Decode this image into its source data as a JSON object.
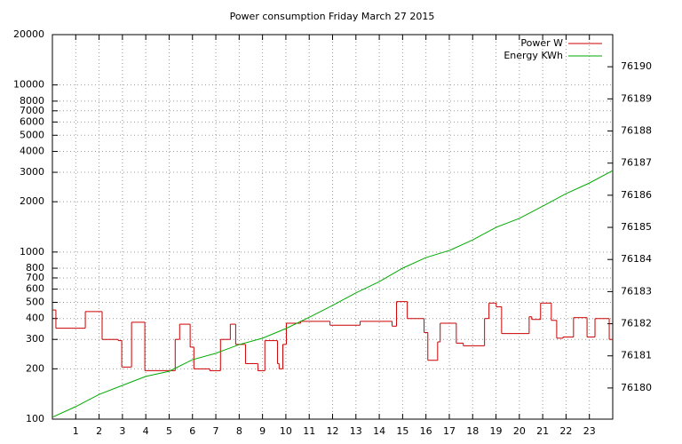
{
  "chart_data": {
    "type": "line",
    "title": "Power consumption Friday March 27 2015",
    "xlim": [
      0,
      24
    ],
    "xticks": [
      1,
      2,
      3,
      4,
      5,
      6,
      7,
      8,
      9,
      10,
      11,
      12,
      13,
      14,
      15,
      16,
      17,
      18,
      19,
      20,
      21,
      22,
      23
    ],
    "ylim": [
      100,
      20000
    ],
    "log_scale": "y",
    "yticks": [
      100,
      200,
      300,
      400,
      500,
      600,
      700,
      800,
      1000,
      2000,
      3000,
      4000,
      5000,
      6000,
      7000,
      8000,
      10000,
      20000
    ],
    "y2lim": [
      76179.03,
      76191
    ],
    "y2ticks": [
      76180,
      76181,
      76182,
      76183,
      76184,
      76185,
      76186,
      76187,
      76188,
      76189,
      76190
    ],
    "grid": true,
    "legend": "top-right",
    "series": [
      {
        "name": "Power W",
        "color": "#cc0000",
        "step": true,
        "x": [
          0,
          0.15,
          1.41,
          2.13,
          2.82,
          2.97,
          3.39,
          3.96,
          5.26,
          5.45,
          5.9,
          6.06,
          6.74,
          7.2,
          7.62,
          7.85,
          8.27,
          8.8,
          9.1,
          9.64,
          9.71,
          9.87,
          10.02,
          10.63,
          11.89,
          13.18,
          14.55,
          14.74,
          15.2,
          15.92,
          16.08,
          16.5,
          16.61,
          17.3,
          17.6,
          18.51,
          18.7,
          19.01,
          19.24,
          20.42,
          20.53,
          20.91,
          21.37,
          21.6,
          21.87,
          22.32,
          22.9,
          23.24,
          23.85
        ],
        "values": [
          450,
          350,
          440,
          300,
          295,
          205,
          380,
          195,
          300,
          370,
          270,
          200,
          195,
          300,
          370,
          280,
          215,
          195,
          295,
          215,
          200,
          280,
          375,
          385,
          365,
          385,
          360,
          505,
          400,
          330,
          225,
          290,
          375,
          285,
          275,
          400,
          495,
          470,
          325,
          410,
          395,
          495,
          390,
          305,
          310,
          405,
          310,
          400,
          300
        ]
      },
      {
        "name": "Energy KWh",
        "color": "#00aa00",
        "axis": "y2",
        "x": [
          0,
          1,
          2,
          3,
          4,
          5,
          6,
          7,
          8,
          9,
          10,
          11,
          12,
          13,
          14,
          15,
          16,
          17,
          18,
          19,
          20,
          21,
          22,
          23,
          24
        ],
        "values": [
          76179.09,
          76179.42,
          76179.8,
          76180.08,
          76180.36,
          76180.52,
          76180.88,
          76181.08,
          76181.35,
          76181.55,
          76181.85,
          76182.2,
          76182.57,
          76182.96,
          76183.31,
          76183.73,
          76184.06,
          76184.28,
          76184.61,
          76185.0,
          76185.28,
          76185.66,
          76186.05,
          76186.38,
          76186.77
        ]
      }
    ]
  }
}
